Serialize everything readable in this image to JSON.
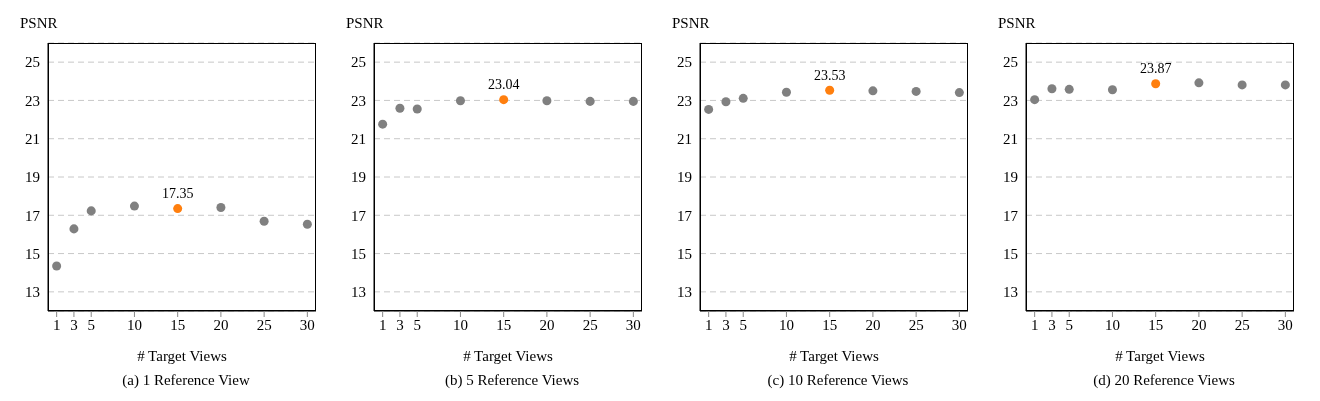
{
  "chart_data": [
    {
      "type": "scatter",
      "title": "(a) 1 Reference View",
      "xlabel": "# Target Views",
      "ylabel": "PSNR",
      "xlim": [
        0,
        31
      ],
      "xticks": [
        1,
        3,
        5,
        10,
        15,
        20,
        25,
        30
      ],
      "ylim": [
        12,
        26
      ],
      "yticks": [
        13,
        15,
        17,
        19,
        21,
        23,
        25
      ],
      "grid": "y",
      "marker": "circle",
      "series": [
        {
          "color": "#808080",
          "x": [
            1,
            3,
            5,
            10,
            20,
            25,
            30
          ],
          "values": [
            14.35,
            16.29,
            17.23,
            17.48,
            17.41,
            16.69,
            16.53
          ]
        },
        {
          "color": "#ff7f0e",
          "x": [
            15
          ],
          "values": [
            17.35
          ],
          "value_labels": [
            "17.35"
          ]
        }
      ]
    },
    {
      "type": "scatter",
      "title": "(b) 5 Reference Views",
      "xlabel": "# Target Views",
      "ylabel": "PSNR",
      "xlim": [
        0,
        31
      ],
      "xticks": [
        1,
        3,
        5,
        10,
        15,
        20,
        25,
        30
      ],
      "ylim": [
        12,
        26
      ],
      "yticks": [
        13,
        15,
        17,
        19,
        21,
        23,
        25
      ],
      "grid": "y",
      "marker": "circle",
      "series": [
        {
          "color": "#808080",
          "x": [
            1,
            3,
            5,
            10,
            20,
            25,
            30
          ],
          "values": [
            21.76,
            22.59,
            22.55,
            22.98,
            22.98,
            22.95,
            22.95
          ]
        },
        {
          "color": "#ff7f0e",
          "x": [
            15
          ],
          "values": [
            23.04
          ],
          "value_labels": [
            "23.04"
          ]
        }
      ]
    },
    {
      "type": "scatter",
      "title": "(c) 10 Reference Views",
      "xlabel": "# Target Views",
      "ylabel": "PSNR",
      "xlim": [
        0,
        31
      ],
      "xticks": [
        1,
        3,
        5,
        10,
        15,
        20,
        25,
        30
      ],
      "ylim": [
        12,
        26
      ],
      "yticks": [
        13,
        15,
        17,
        19,
        21,
        23,
        25
      ],
      "grid": "y",
      "marker": "circle",
      "series": [
        {
          "color": "#808080",
          "x": [
            1,
            3,
            5,
            10,
            20,
            25,
            30
          ],
          "values": [
            22.53,
            22.93,
            23.11,
            23.43,
            23.5,
            23.47,
            23.41
          ]
        },
        {
          "color": "#ff7f0e",
          "x": [
            15
          ],
          "values": [
            23.53
          ],
          "value_labels": [
            "23.53"
          ]
        }
      ]
    },
    {
      "type": "scatter",
      "title": "(d) 20 Reference Views",
      "xlabel": "# Target Views",
      "ylabel": "PSNR",
      "xlim": [
        0,
        31
      ],
      "xticks": [
        1,
        3,
        5,
        10,
        15,
        20,
        25,
        30
      ],
      "ylim": [
        12,
        26
      ],
      "yticks": [
        13,
        15,
        17,
        19,
        21,
        23,
        25
      ],
      "grid": "y",
      "marker": "circle",
      "series": [
        {
          "color": "#808080",
          "x": [
            1,
            3,
            5,
            10,
            20,
            25,
            30
          ],
          "values": [
            23.04,
            23.61,
            23.58,
            23.56,
            23.92,
            23.81,
            23.81
          ]
        },
        {
          "color": "#ff7f0e",
          "x": [
            15
          ],
          "values": [
            23.87
          ],
          "value_labels": [
            "23.87"
          ]
        }
      ]
    }
  ]
}
